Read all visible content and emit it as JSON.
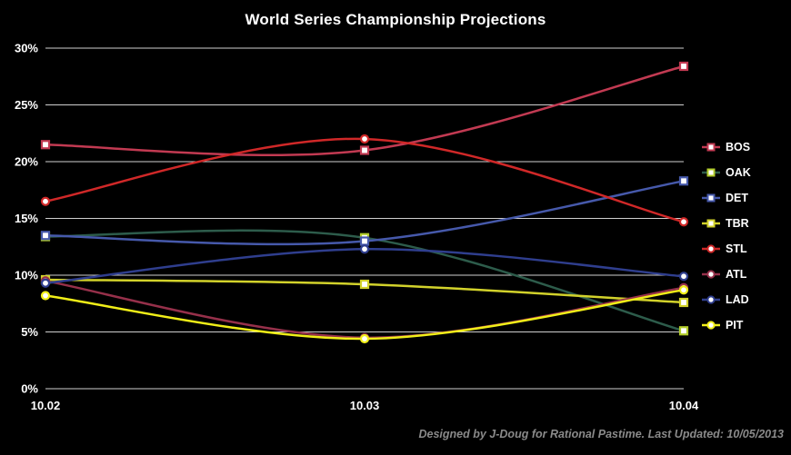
{
  "footer": "Designed by J-Doug for Rational Pastime. Last Updated: 10/05/2013",
  "chart_data": {
    "type": "line",
    "title": "World Series Championship Projections",
    "x": [
      "10.02",
      "10.03",
      "10.04"
    ],
    "ylim": [
      0,
      30
    ],
    "ytick_step": 5,
    "ytick_labels": [
      "0%",
      "5%",
      "10%",
      "15%",
      "20%",
      "25%",
      "30%"
    ],
    "grid": true,
    "legend_position": "right",
    "background": "#000000",
    "grid_color": "#cfcfcf",
    "series": [
      {
        "name": "BOS",
        "marker": "square",
        "color": "#c23a52",
        "values": [
          21.5,
          21.0,
          28.4
        ]
      },
      {
        "name": "OAK",
        "marker": "square",
        "color": "#b2cc2a",
        "line_color": "#2d5c4b",
        "values": [
          13.4,
          13.3,
          5.1
        ]
      },
      {
        "name": "DET",
        "marker": "square",
        "color": "#4659ab",
        "values": [
          13.5,
          13.0,
          18.3
        ]
      },
      {
        "name": "TBR",
        "marker": "square",
        "color": "#d2d22b",
        "values": [
          9.6,
          9.2,
          7.6
        ]
      },
      {
        "name": "STL",
        "marker": "circle",
        "color": "#d02828",
        "values": [
          16.5,
          22.0,
          14.7
        ]
      },
      {
        "name": "ATL",
        "marker": "circle",
        "color": "#96304a",
        "values": [
          9.5,
          4.5,
          8.9
        ]
      },
      {
        "name": "LAD",
        "marker": "circle",
        "color": "#2f3e8e",
        "values": [
          9.3,
          12.3,
          9.9
        ]
      },
      {
        "name": "PIT",
        "marker": "circle",
        "color": "#f0ee18",
        "values": [
          8.2,
          4.4,
          8.7
        ]
      }
    ]
  }
}
